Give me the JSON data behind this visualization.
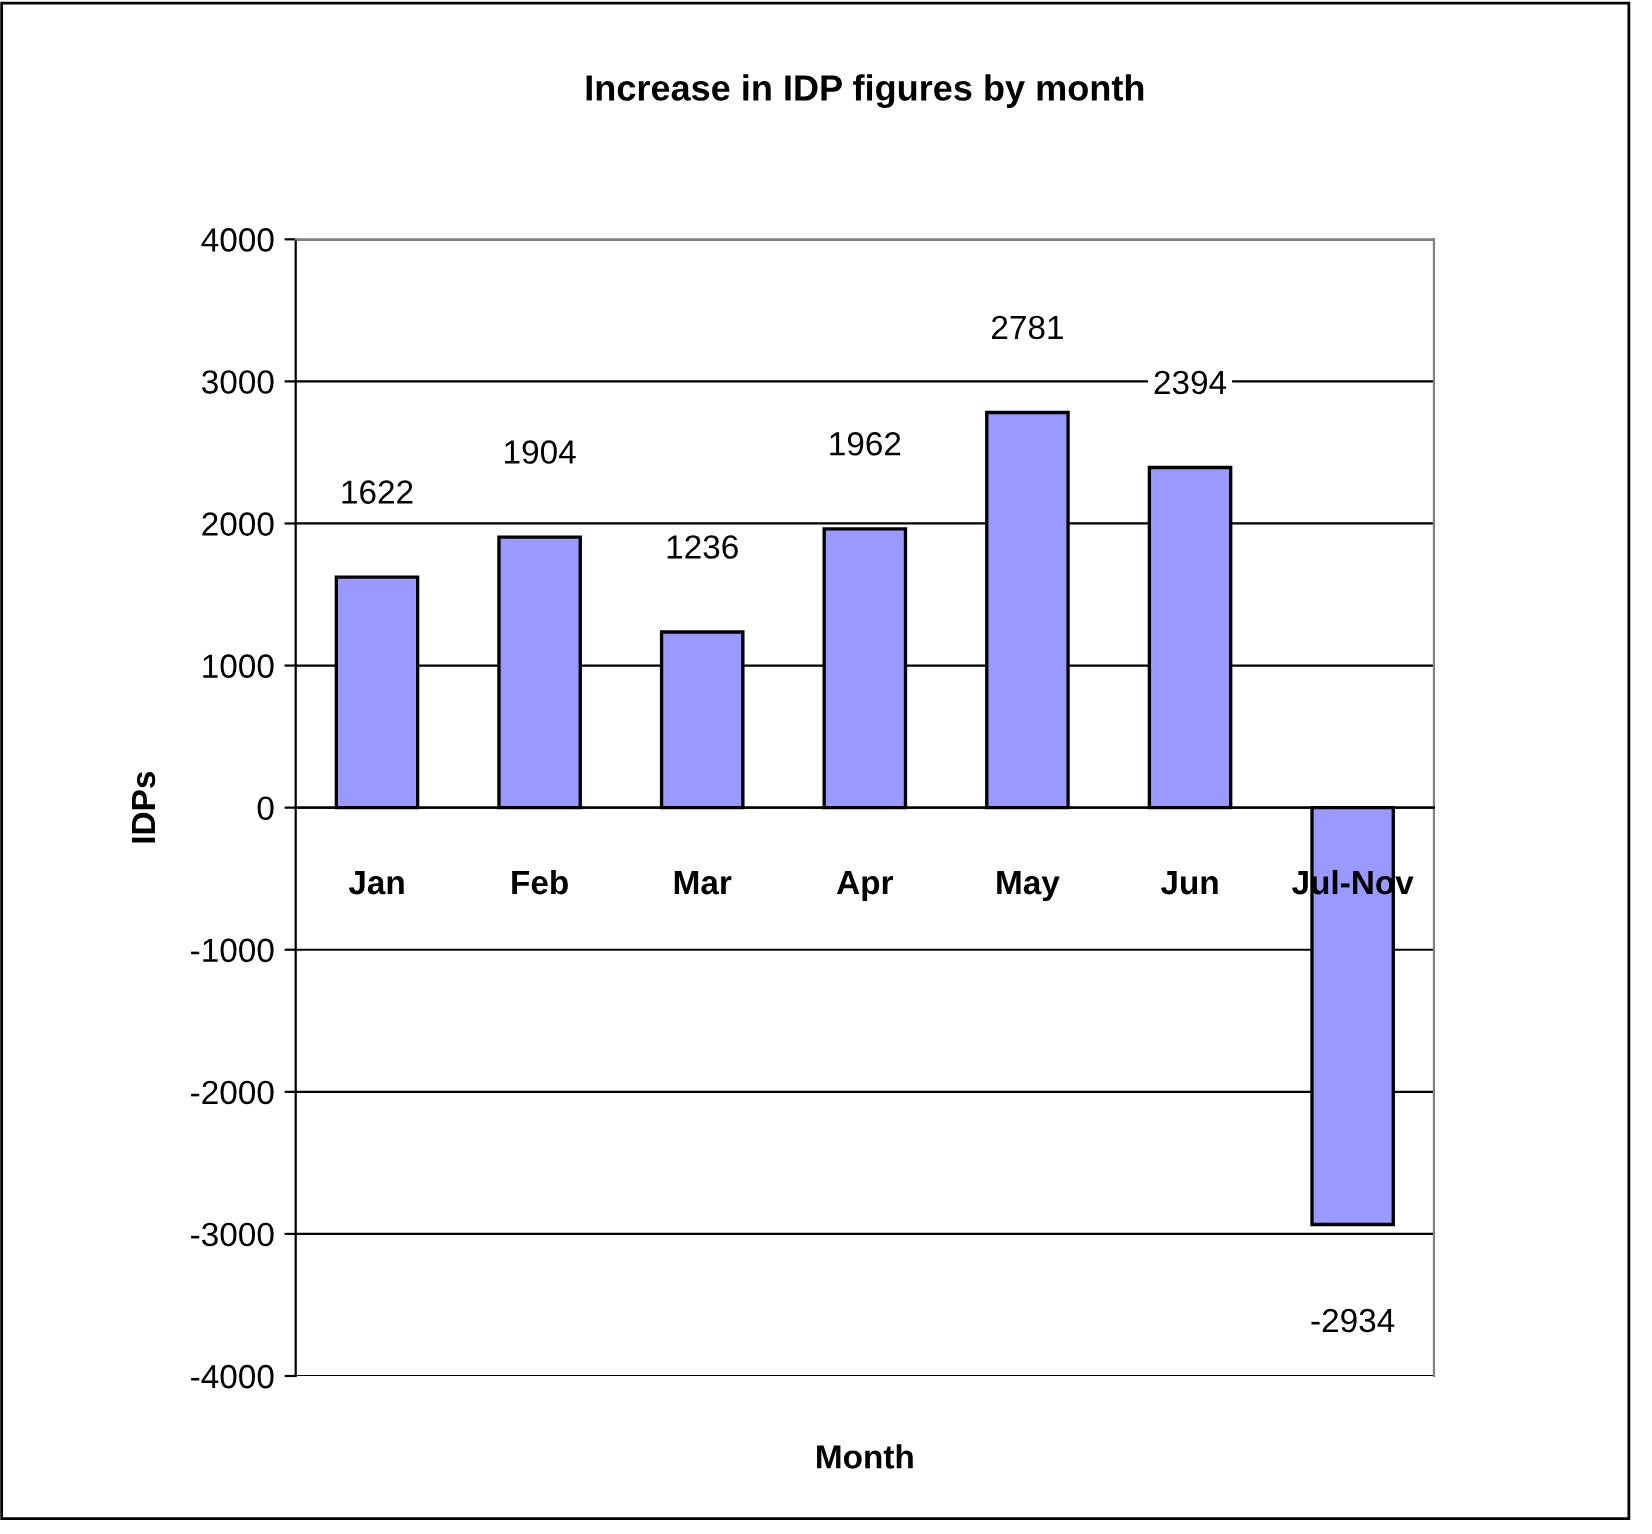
{
  "chart_data": {
    "type": "bar",
    "title": "Increase in IDP figures by month",
    "xlabel": "Month",
    "ylabel": "IDPs",
    "categories": [
      "Jan",
      "Feb",
      "Mar",
      "Apr",
      "May",
      "Jun",
      "Jul-Nov"
    ],
    "values": [
      1622,
      1904,
      1236,
      1962,
      2781,
      2394,
      -2934
    ],
    "color": "#9999ff",
    "ylim": [
      -4000,
      4000
    ],
    "yticks": [
      -4000,
      -3000,
      -2000,
      -1000,
      0,
      1000,
      2000,
      3000,
      4000
    ],
    "grid": "y",
    "data_labels": true,
    "legend": false
  }
}
